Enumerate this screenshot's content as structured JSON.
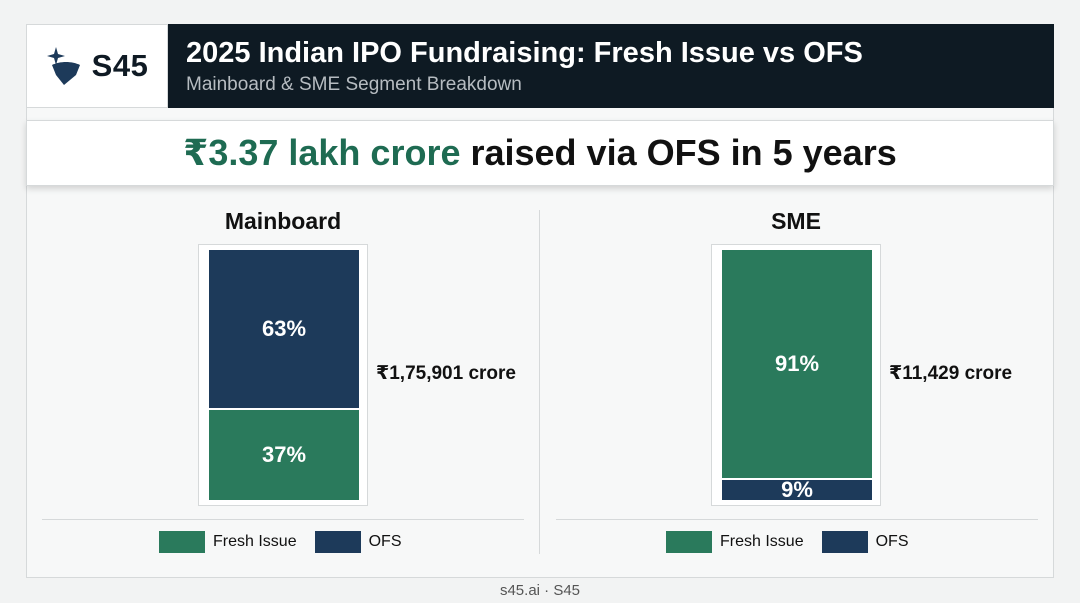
{
  "brand": {
    "logo_text": "S45",
    "logo_icon": "star-shield-icon"
  },
  "header": {
    "title": "2025 Indian IPO Fundraising: Fresh Issue vs OFS",
    "subtitle": "Mainboard & SME Segment Breakdown"
  },
  "banner": {
    "highlight": "₹3.37 lakh crore",
    "rest": "raised via OFS in 5 years"
  },
  "colors": {
    "fresh_issue": "#2a7a5c",
    "ofs": "#1d3a5a",
    "accent": "#1e6b52",
    "header_bg": "#0e1a23"
  },
  "chart_data": [
    {
      "type": "bar",
      "title": "Mainboard",
      "stacked": true,
      "total_label": "₹1,75,901 crore",
      "series": [
        {
          "name": "Fresh Issue",
          "value": 37,
          "label": "37%"
        },
        {
          "name": "OFS",
          "value": 63,
          "label": "63%"
        }
      ],
      "legend": [
        "Fresh Issue",
        "OFS"
      ],
      "legend_position": "bottom"
    },
    {
      "type": "bar",
      "title": "SME",
      "stacked": true,
      "total_label": "₹11,429 crore",
      "series": [
        {
          "name": "OFS",
          "value": 9,
          "label": "9%"
        },
        {
          "name": "Fresh Issue",
          "value": 91,
          "label": "91%"
        }
      ],
      "legend": [
        "Fresh Issue",
        "OFS"
      ],
      "legend_position": "bottom"
    }
  ],
  "footer": {
    "text": "s45.ai · S45"
  }
}
